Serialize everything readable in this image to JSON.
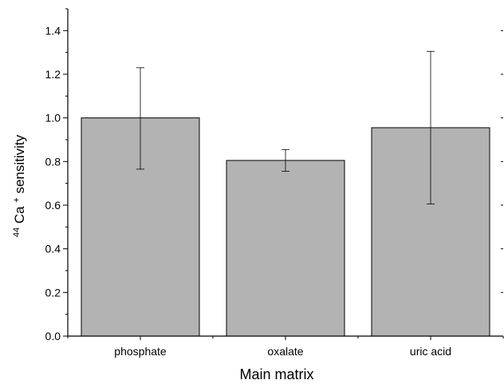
{
  "chart_data": {
    "type": "bar",
    "title": "",
    "categories": [
      "phosphate",
      "oxalate",
      "uric acid"
    ],
    "values": [
      1.0,
      0.805,
      0.955
    ],
    "errors_low": [
      0.765,
      0.755,
      0.605
    ],
    "errors_high": [
      1.23,
      0.855,
      1.305
    ],
    "xlabel": "Main matrix",
    "ylabel": {
      "superscript_mass": "44",
      "element": "Ca",
      "charge": "+",
      "rest": " sensitivity"
    },
    "ylim": [
      0,
      1.5
    ],
    "yticks": [
      "0.0",
      "0.2",
      "0.4",
      "0.6",
      "0.8",
      "1.0",
      "1.2",
      "1.4"
    ],
    "bar_color": "#b3b3b3",
    "bar_edge_color": "#000000",
    "grid": false,
    "legend": "none"
  }
}
